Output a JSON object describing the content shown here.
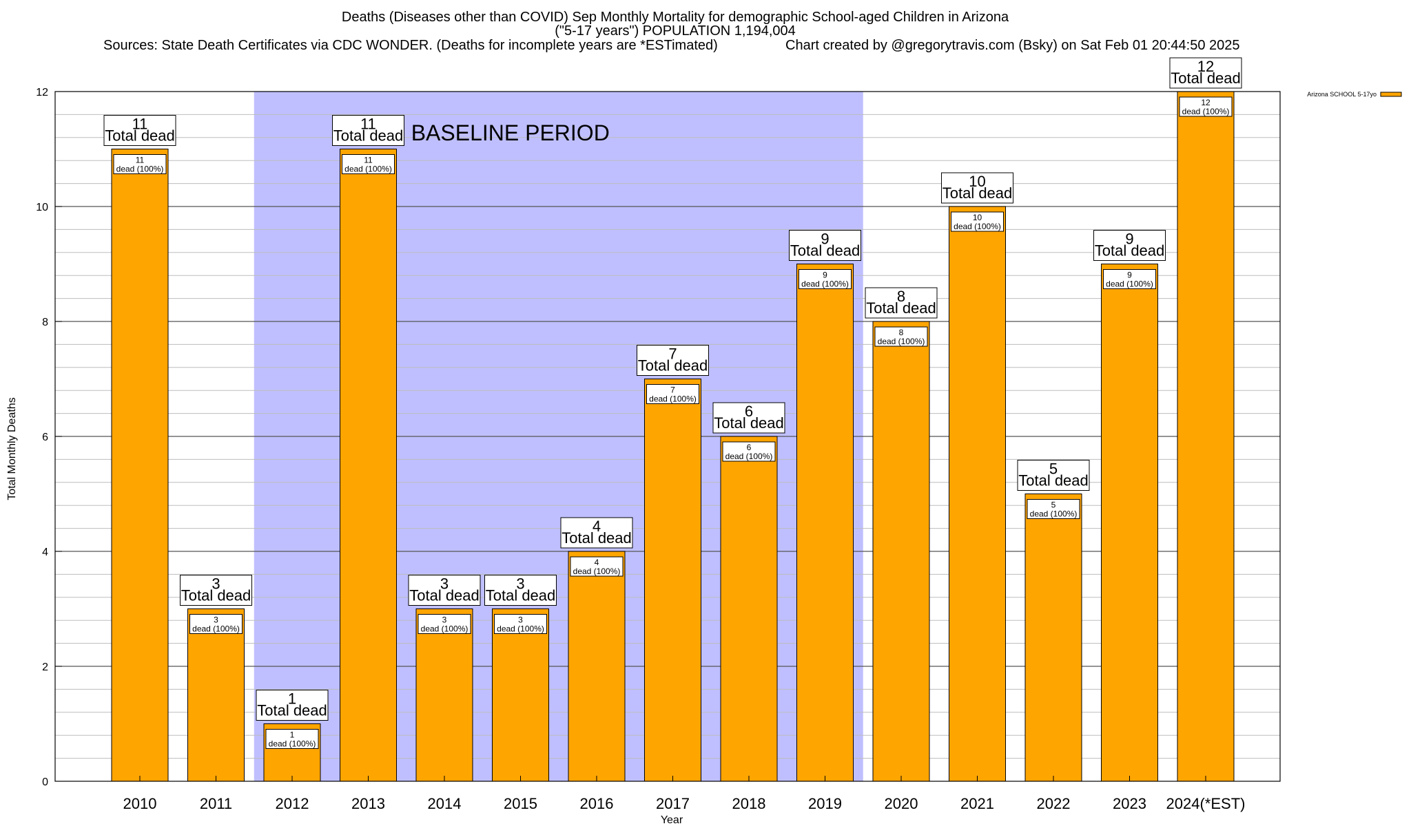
{
  "title": {
    "line1": "Deaths (Diseases other than COVID) Sep Monthly Mortality for demographic School-aged Children in Arizona",
    "line2": "(\"5-17 years\") POPULATION 1,194,004",
    "line3_left": "Sources: State Death Certificates via CDC WONDER. (Deaths for incomplete years are *ESTimated)",
    "line3_right": "Chart created by @gregorytravis.com (Bsky) on Sat Feb 01 20:44:50 2025"
  },
  "chart_data": {
    "type": "bar",
    "categories": [
      "2010",
      "2011",
      "2012",
      "2013",
      "2014",
      "2015",
      "2016",
      "2017",
      "2018",
      "2019",
      "2020",
      "2021",
      "2022",
      "2023",
      "2024(*EST)"
    ],
    "series": [
      {
        "name": "Arizona SCHOOL 5-17yo",
        "values": [
          11,
          3,
          1,
          11,
          3,
          3,
          4,
          7,
          6,
          9,
          8,
          10,
          5,
          9,
          12
        ],
        "color": "#FFA500"
      }
    ],
    "total_label": "Total dead",
    "inner_label": "dead (100%)",
    "xlabel": "Year",
    "ylabel": "Total Monthly Deaths",
    "ylim": [
      0,
      12
    ],
    "yticks": [
      0,
      2,
      4,
      6,
      8,
      10,
      12
    ],
    "grid": true,
    "legend": "top-right",
    "baseline": {
      "label": "BASELINE PERIOD",
      "start": "2012",
      "end": "2019",
      "color": "#BFBFFF"
    }
  }
}
